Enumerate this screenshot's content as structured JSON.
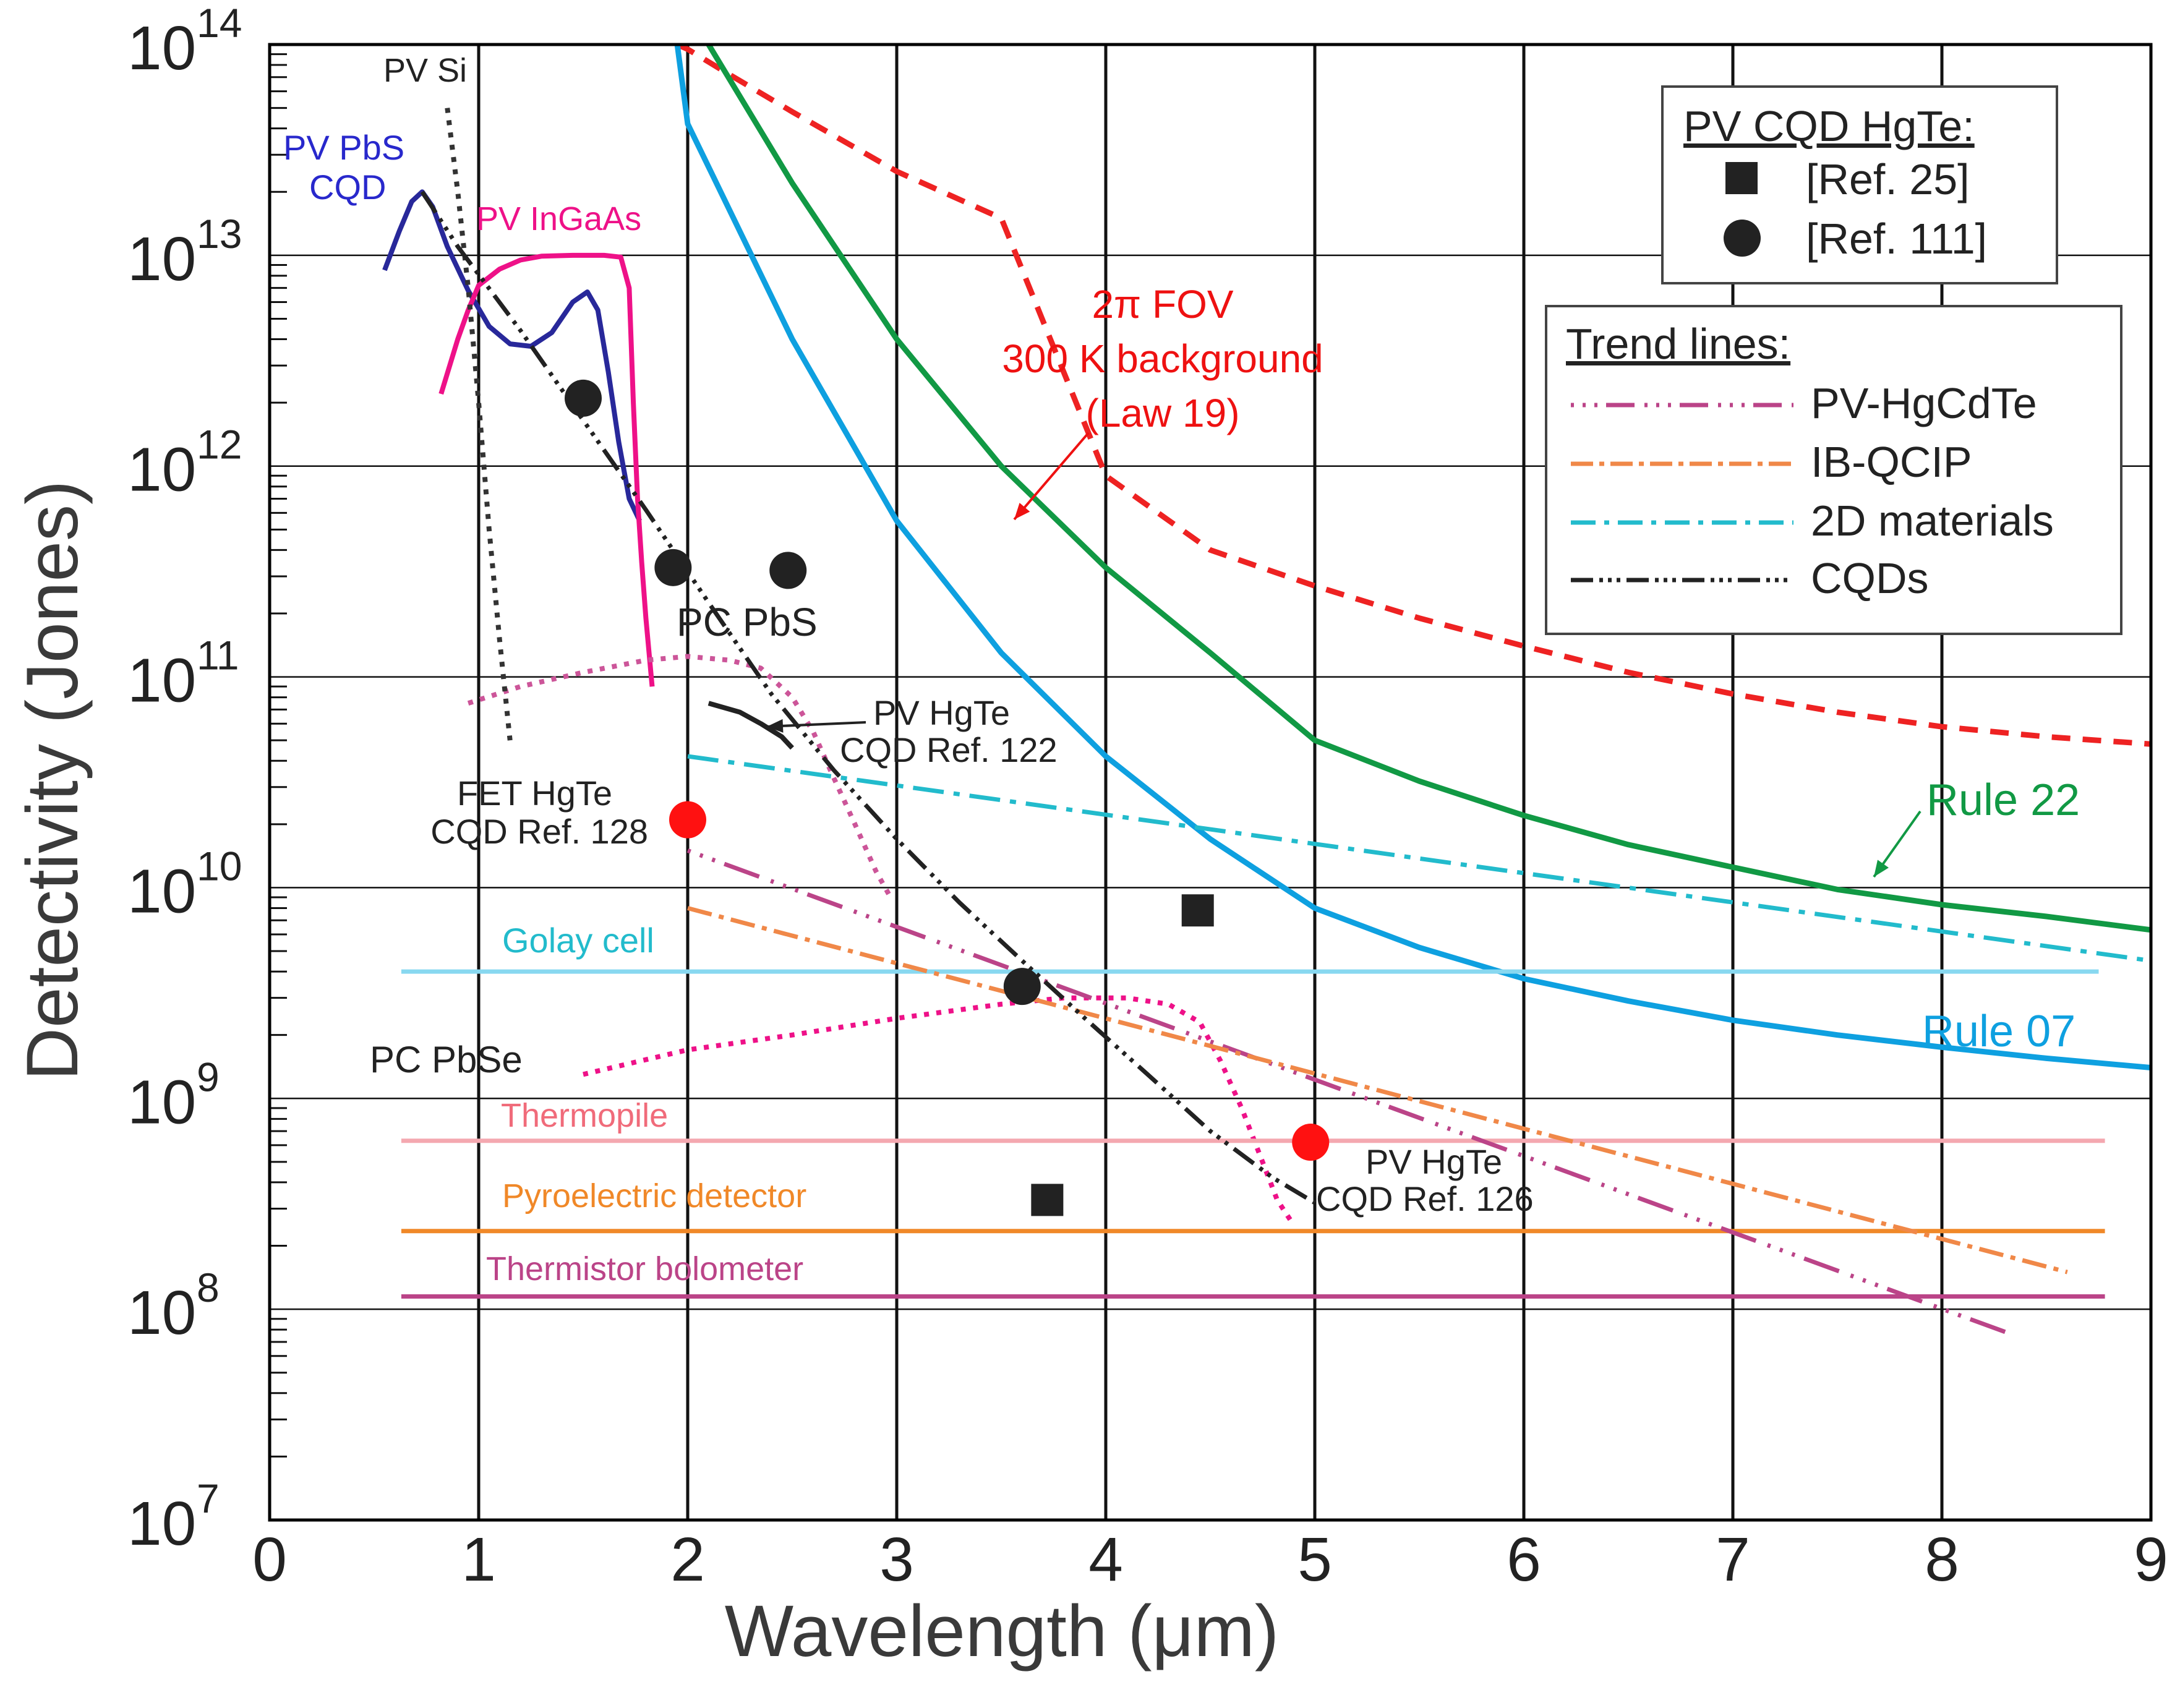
{
  "chart_data": {
    "type": "line",
    "xlabel": "Wavelength (μm)",
    "ylabel": "Detectivity (Jones)",
    "xlim": [
      0,
      9
    ],
    "ylim_log10": [
      7,
      14
    ],
    "x_ticks": [
      "0",
      "1",
      "2",
      "3",
      "4",
      "5",
      "6",
      "7",
      "8",
      "9"
    ],
    "y_ticks": [
      {
        "base": "10",
        "exp": "7"
      },
      {
        "base": "10",
        "exp": "8"
      },
      {
        "base": "10",
        "exp": "9"
      },
      {
        "base": "10",
        "exp": "10"
      },
      {
        "base": "10",
        "exp": "11"
      },
      {
        "base": "10",
        "exp": "12"
      },
      {
        "base": "10",
        "exp": "13"
      },
      {
        "base": "10",
        "exp": "14"
      }
    ],
    "grid": true,
    "colors": {
      "blip": "#ee2222",
      "rule22": "#119944",
      "rule07": "#0ea0e0",
      "pbs_cqd": "#28289a",
      "ingaas": "#ee1188",
      "pbs_pc": "#cc5599",
      "pbse_pc": "#ee1188",
      "golay": "#88d8f0",
      "thermopile": "#f4a8b0",
      "pyro": "#f08828",
      "thermistor": "#bb4488",
      "trend_hgcdte": "#bb4488",
      "trend_ibqcip": "#f08848",
      "trend_2d": "#22bbcc",
      "trend_cqd": "#222222",
      "pv_si": "#333333",
      "fet_hgte": "#333333",
      "ref122": "#222222"
    },
    "series": [
      {
        "name": "2π FOV 300 K background (Law 19)",
        "key": "blip",
        "style": "dashed",
        "x": [
          1.95,
          2.0,
          2.2,
          2.5,
          3,
          3.5,
          4,
          4.5,
          5,
          5.5,
          6,
          6.5,
          7,
          7.5,
          8,
          8.5,
          9
        ],
        "y": [
          100000000000000.0,
          95000000000000.0,
          72000000000000.0,
          48000000000000.0,
          25000000000000.0,
          15000000000000.0,
          900000000000.0,
          400000000000.0,
          270000000000.0,
          190000000000.0,
          140000000000.0,
          105000000000.0,
          83000000000.0,
          68000000000.0,
          58000000000.0,
          52000000000.0,
          48000000000.0
        ]
      },
      {
        "name": "Rule 22",
        "key": "rule22",
        "style": "solid",
        "x": [
          2.1,
          2.5,
          3,
          3.5,
          4,
          4.5,
          5,
          5.5,
          6,
          6.5,
          7,
          7.5,
          8,
          8.5,
          9
        ],
        "y": [
          100000000000000.0,
          22000000000000.0,
          4000000000000.0,
          1000000000000.0,
          330000000000.0,
          130000000000.0,
          50000000000.0,
          32000000000.0,
          22000000000.0,
          16000000000.0,
          12500000000.0,
          9800000000.0,
          8300000000.0,
          7300000000.0,
          6300000000.0
        ]
      },
      {
        "name": "Rule 07",
        "key": "rule07",
        "style": "solid",
        "x": [
          1.95,
          2,
          2.5,
          3,
          3.5,
          4,
          4.5,
          5,
          5.5,
          6,
          6.5,
          7,
          7.5,
          8,
          8.5,
          9
        ],
        "y": [
          100000000000000.0,
          42000000000000.0,
          4000000000000.0,
          550000000000.0,
          130000000000.0,
          42000000000.0,
          17000000000.0,
          8000000000.0,
          5200000000.0,
          3700000000.0,
          2900000000.0,
          2350000000.0,
          2000000000.0,
          1750000000.0,
          1550000000.0,
          1400000000.0
        ]
      },
      {
        "name": "PV PbS CQD",
        "key": "pbs_cqd",
        "style": "solid",
        "x": [
          0.55,
          0.62,
          0.68,
          0.73,
          0.78,
          0.85,
          0.95,
          1.05,
          1.15,
          1.25,
          1.35,
          1.45,
          1.52,
          1.57,
          1.62,
          1.67,
          1.72,
          1.77
        ],
        "y": [
          8500000000000.0,
          13000000000000.0,
          18000000000000.0,
          20000000000000.0,
          17000000000000.0,
          11000000000000.0,
          6800000000000.0,
          4600000000000.0,
          3800000000000.0,
          3700000000000.0,
          4300000000000.0,
          6000000000000.0,
          6700000000000.0,
          5500000000000.0,
          2800000000000.0,
          1300000000000.0,
          700000000000.0,
          550000000000.0
        ]
      },
      {
        "name": "PV InGaAs",
        "key": "ingaas",
        "style": "solid",
        "x": [
          0.82,
          0.9,
          0.95,
          1.0,
          1.1,
          1.2,
          1.3,
          1.45,
          1.6,
          1.68,
          1.72,
          1.74,
          1.76,
          1.78,
          1.8,
          1.83
        ],
        "y": [
          2200000000000.0,
          4000000000000.0,
          5500000000000.0,
          7200000000000.0,
          8600000000000.0,
          9500000000000.0,
          9900000000000.0,
          10000000000000.0,
          10000000000000.0,
          9800000000000.0,
          7000000000000.0,
          2000000000000.0,
          700000000000.0,
          350000000000.0,
          190000000000.0,
          90000000000.0
        ]
      },
      {
        "name": "PC PbS",
        "key": "pbs_pc",
        "style": "dotted",
        "x": [
          0.95,
          1.2,
          1.5,
          1.8,
          2.0,
          2.2,
          2.35,
          2.5,
          2.6,
          2.7,
          2.8,
          2.9,
          2.97
        ],
        "y": [
          75000000000.0,
          90000000000.0,
          105000000000.0,
          120000000000.0,
          125000000000.0,
          120000000000.0,
          110000000000.0,
          80000000000.0,
          55000000000.0,
          33000000000.0,
          20000000000.0,
          12000000000.0,
          9000000000.0
        ]
      },
      {
        "name": "PC PbSe",
        "key": "pbse_pc",
        "style": "dotted",
        "x": [
          1.5,
          2,
          2.5,
          3,
          3.5,
          3.8,
          4.1,
          4.3,
          4.45,
          4.55,
          4.65,
          4.75,
          4.82,
          4.9
        ],
        "y": [
          1300000000.0,
          1700000000.0,
          2000000000.0,
          2400000000.0,
          2800000000.0,
          3000000000.0,
          3000000000.0,
          2800000000.0,
          2300000000.0,
          1500000000.0,
          900000000.0,
          500000000.0,
          330000000.0,
          250000000.0
        ]
      },
      {
        "name": "PV Si",
        "key": "pv_si",
        "style": "dotted",
        "x": [
          0.85,
          0.9,
          0.95,
          1.0,
          1.05,
          1.1,
          1.15
        ],
        "y": [
          50000000000000.0,
          20000000000000.0,
          7000000000000.0,
          2000000000000.0,
          500000000000.0,
          150000000000.0,
          50000000000.0
        ]
      },
      {
        "name": "PV HgTe CQD Ref. 122",
        "key": "ref122",
        "style": "solid",
        "x": [
          2.1,
          2.25,
          2.35,
          2.45,
          2.5
        ],
        "y": [
          75000000000.0,
          68000000000.0,
          60000000000.0,
          52000000000.0,
          46000000000.0
        ]
      },
      {
        "name": "Golay cell",
        "key": "golay",
        "style": "solid",
        "x": [
          0.63,
          8.75
        ],
        "y": [
          4000000000.0,
          4000000000.0
        ]
      },
      {
        "name": "Thermopile",
        "key": "thermopile",
        "style": "solid",
        "x": [
          0.63,
          8.78
        ],
        "y": [
          630000000.0,
          630000000.0
        ]
      },
      {
        "name": "Pyroelectric detector",
        "key": "pyro",
        "style": "solid",
        "x": [
          0.63,
          8.78
        ],
        "y": [
          235000000.0,
          235000000.0
        ]
      },
      {
        "name": "Thermistor bolometer",
        "key": "thermistor",
        "style": "solid",
        "x": [
          0.63,
          8.78
        ],
        "y": [
          115000000.0,
          115000000.0
        ]
      },
      {
        "name": "PV-HgCdTe",
        "key": "trend_hgcdte",
        "style": "trend",
        "x": [
          2.0,
          8.35
        ],
        "y": [
          15000000000.0,
          75000000.0
        ]
      },
      {
        "name": "IB-QCIP",
        "key": "trend_ibqcip",
        "style": "trend",
        "x": [
          2.0,
          8.6
        ],
        "y": [
          8000000000.0,
          150000000.0
        ]
      },
      {
        "name": "2D materials",
        "key": "trend_2d",
        "style": "trend",
        "x": [
          2.0,
          9.0
        ],
        "y": [
          42000000000.0,
          4500000000.0
        ]
      },
      {
        "name": "CQDs",
        "key": "trend_cqd",
        "style": "trend",
        "x": [
          0.73,
          0.9,
          1.2,
          1.5,
          1.8,
          2.1,
          2.4,
          2.7,
          3.0,
          3.3,
          3.6,
          3.9,
          4.2,
          4.5,
          4.8,
          5.0
        ],
        "y": [
          20000000000000.0,
          11000000000000.0,
          4400000000000.0,
          1650000000000.0,
          620000000000.0,
          225000000000.0,
          83000000000.0,
          36000000000.0,
          17000000000.0,
          8500000000.0,
          4500000000.0,
          2400000000.0,
          1300000000.0,
          700000000.0,
          420000000.0,
          320000000.0
        ]
      }
    ],
    "markers": [
      {
        "group": "Ref. 25",
        "shape": "square",
        "color": "#222222",
        "x": 3.72,
        "y": 330000000.0
      },
      {
        "group": "Ref. 25",
        "shape": "square",
        "color": "#222222",
        "x": 4.44,
        "y": 7800000000.0
      },
      {
        "group": "Ref. 111",
        "shape": "circle",
        "color": "#222222",
        "x": 1.5,
        "y": 2100000000000.0
      },
      {
        "group": "Ref. 111",
        "shape": "circle",
        "color": "#222222",
        "x": 1.93,
        "y": 330000000000.0
      },
      {
        "group": "Ref. 111",
        "shape": "circle",
        "color": "#222222",
        "x": 2.48,
        "y": 320000000000.0
      },
      {
        "group": "Ref. 111",
        "shape": "circle",
        "color": "#222222",
        "x": 3.6,
        "y": 3400000000.0
      },
      {
        "group": "Ref. 128",
        "shape": "circle",
        "color": "#ff1111",
        "x": 2.0,
        "y": 21000000000.0
      },
      {
        "group": "Ref. 126",
        "shape": "circle",
        "color": "#ff1111",
        "x": 4.98,
        "y": 620000000.0
      }
    ],
    "annotations": {
      "pv_si": "PV Si",
      "pbs_cqd_1": "PV PbS",
      "pbs_cqd_2": "CQD",
      "ingaas": "PV InGaAs",
      "blip_1": "2π FOV",
      "blip_2": "300 K background",
      "blip_3": "(Law 19)",
      "pc_pbs": "PC PbS",
      "ref122_1": "PV HgTe",
      "ref122_2": "CQD Ref. 122",
      "ref128_1": "FET HgTe",
      "ref128_2": "CQD Ref. 128",
      "golay": "Golay cell",
      "pc_pbse": "PC PbSe",
      "thermopile": "Thermopile",
      "pyro": "Pyroelectric detector",
      "thermistor": "Thermistor bolometer",
      "ref126_1": "PV HgTe",
      "ref126_2": "CQD Ref. 126",
      "rule22": "Rule 22",
      "rule07": "Rule 07"
    },
    "legend_markers": {
      "title": "PV CQD HgTe:",
      "items": [
        {
          "shape": "square",
          "label": "[Ref. 25]"
        },
        {
          "shape": "circle",
          "label": "[Ref. 111]"
        }
      ]
    },
    "legend_trends": {
      "title": "Trend lines:",
      "items": [
        {
          "key": "trend_hgcdte",
          "label": "PV-HgCdTe"
        },
        {
          "key": "trend_ibqcip",
          "label": "IB-QCIP"
        },
        {
          "key": "trend_2d",
          "label": "2D materials"
        },
        {
          "key": "trend_cqd",
          "label": "CQDs"
        }
      ]
    }
  }
}
